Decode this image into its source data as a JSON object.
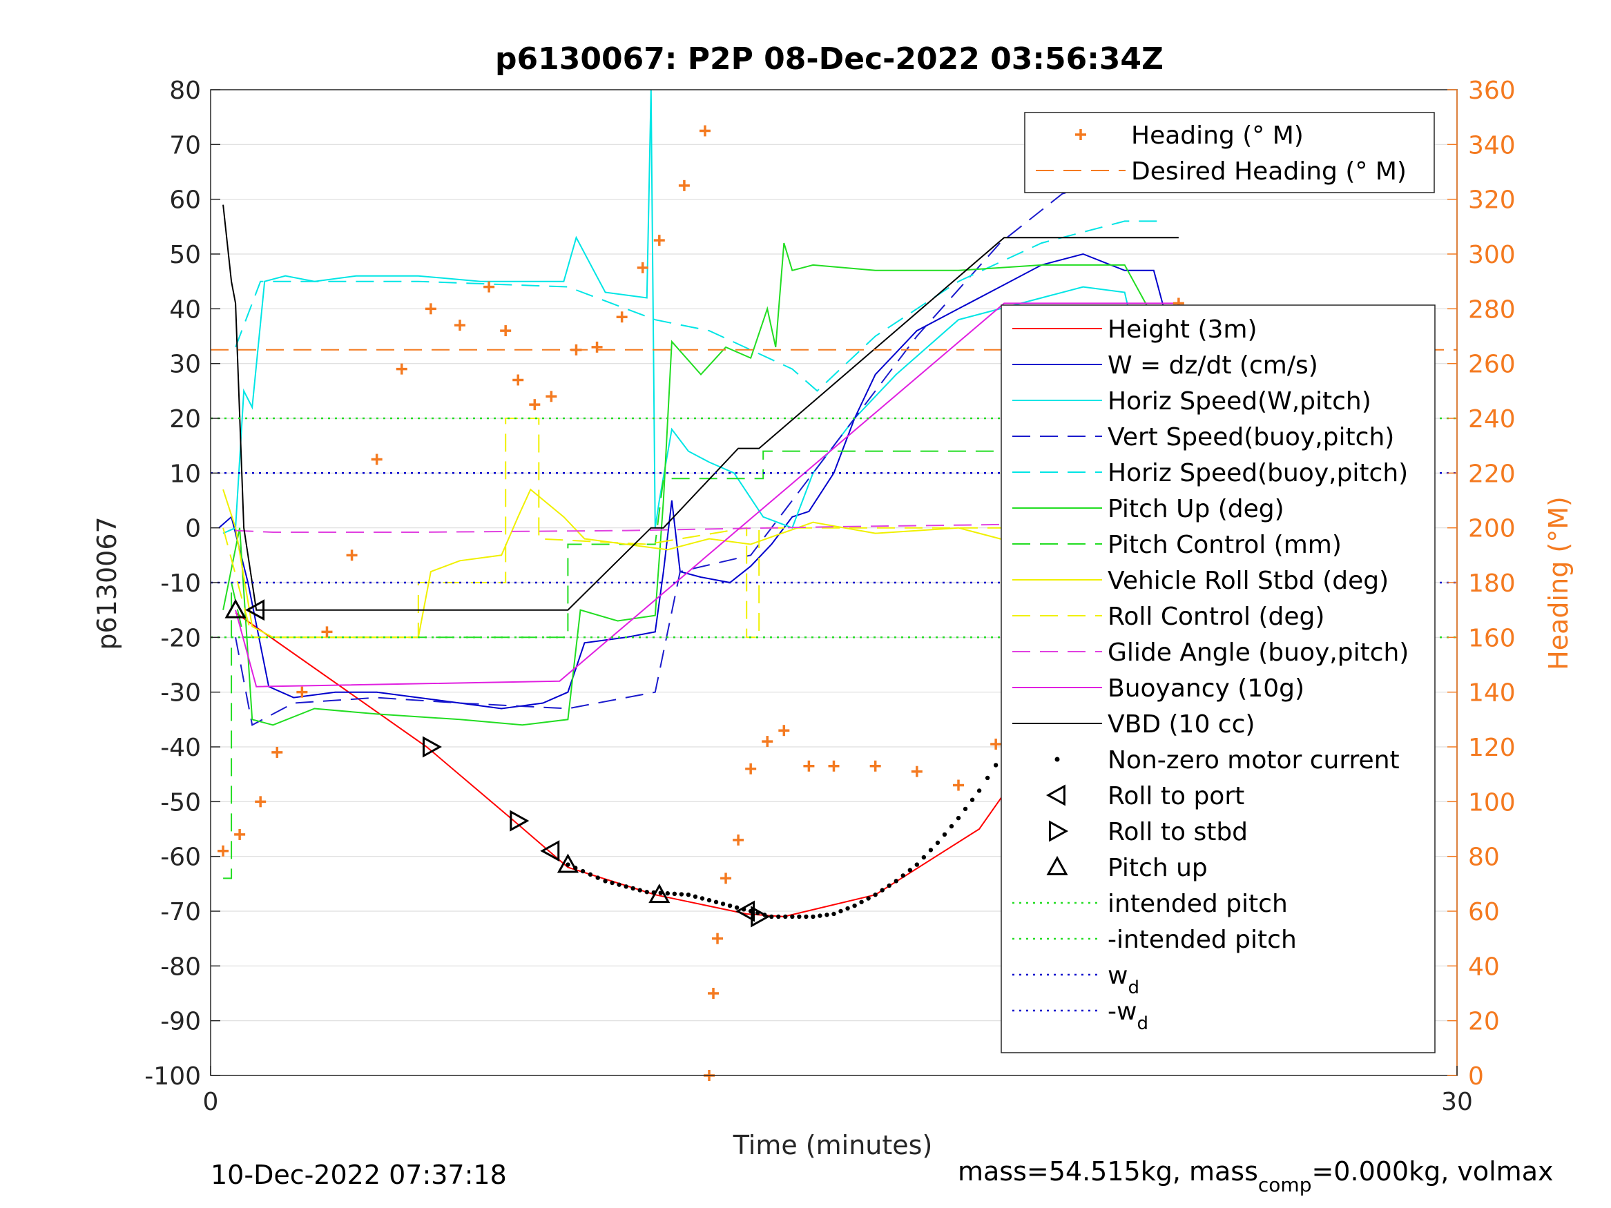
{
  "title": "p6130067: P2P 08-Dec-2022 03:56:34Z",
  "footer_left": "10-Dec-2022 07:37:18",
  "footer_right_parts": [
    "mass=54.515kg, mass",
    "comp",
    "=0.000kg, volmax"
  ],
  "colors": {
    "heading": "#f47a20",
    "height": "#ff0000",
    "w": "#0000cc",
    "horiz": "#00e5e5",
    "vert": "#1a1acc",
    "pitch": "#22dd22",
    "roll": "#f0f000",
    "glide": "#e040e0",
    "buoy": "#e020e0",
    "vbd": "#000000",
    "grid": "#dddddd"
  },
  "chart_data": {
    "type": "line",
    "title": "p6130067: P2P 08-Dec-2022 03:56:34Z",
    "xlabel": "Time (minutes)",
    "ylabel": "p6130067",
    "y2label": "Heading (°M)",
    "xlim": [
      0,
      30
    ],
    "ylim": [
      -100,
      80
    ],
    "y2lim": [
      0,
      360
    ],
    "xticks": [
      "0",
      "30"
    ],
    "yticks": [
      "80",
      "70",
      "60",
      "50",
      "40",
      "30",
      "20",
      "10",
      "0",
      "-10",
      "-20",
      "-30",
      "-40",
      "-50",
      "-60",
      "-70",
      "-80",
      "-90",
      "-100"
    ],
    "y2ticks": [
      "360",
      "340",
      "320",
      "300",
      "280",
      "260",
      "240",
      "220",
      "200",
      "180",
      "160",
      "140",
      "120",
      "100",
      "80",
      "60",
      "40",
      "20",
      "0"
    ],
    "grid": true,
    "legend_top": [
      {
        "label": "Heading (° M)",
        "key": "heading",
        "style": "plus"
      },
      {
        "label": "Desired Heading (° M)",
        "key": "heading",
        "style": "dashed"
      }
    ],
    "legend_main": [
      {
        "label": "Height (3m)",
        "key": "height",
        "style": "solid"
      },
      {
        "label": "W = dz/dt (cm/s)",
        "key": "w",
        "style": "solid"
      },
      {
        "label": "Horiz Speed(W,pitch)",
        "key": "horiz",
        "style": "solid"
      },
      {
        "label": "Vert Speed(buoy,pitch)",
        "key": "vert",
        "style": "dashed"
      },
      {
        "label": "Horiz Speed(buoy,pitch)",
        "key": "horiz",
        "style": "dashed"
      },
      {
        "label": "Pitch Up (deg)",
        "key": "pitch",
        "style": "solid"
      },
      {
        "label": "Pitch Control (mm)",
        "key": "pitch",
        "style": "dashed"
      },
      {
        "label": "Vehicle Roll Stbd (deg)",
        "key": "roll",
        "style": "solid"
      },
      {
        "label": "Roll Control (deg)",
        "key": "roll",
        "style": "dashed"
      },
      {
        "label": "Glide Angle (buoy,pitch)",
        "key": "glide",
        "style": "dashed"
      },
      {
        "label": "Buoyancy (10g)",
        "key": "buoy",
        "style": "solid"
      },
      {
        "label": "VBD (10 cc)",
        "key": "vbd",
        "style": "solid"
      },
      {
        "label": "Non-zero motor current",
        "key": "vbd",
        "style": "dot"
      },
      {
        "label": "Roll to port",
        "key": "vbd",
        "style": "tri-left"
      },
      {
        "label": "Roll to stbd",
        "key": "vbd",
        "style": "tri-right"
      },
      {
        "label": "Pitch up",
        "key": "vbd",
        "style": "tri-up"
      },
      {
        "label": "intended pitch",
        "key": "pitch",
        "style": "dotted"
      },
      {
        "label": "-intended pitch",
        "key": "pitch",
        "style": "dotted"
      },
      {
        "label": "w",
        "sub": "d",
        "key": "w",
        "style": "dotted"
      },
      {
        "label": "-w",
        "sub": "d",
        "key": "w",
        "style": "dotted"
      }
    ],
    "series": [
      {
        "name": "Height (3m)",
        "key": "height",
        "style": "solid",
        "x": [
          0.6,
          5.2,
          7.3,
          8.6,
          10.7,
          12.9,
          13.8,
          16.0,
          18.5,
          21.0,
          23.3
        ],
        "y": [
          -15.5,
          -40,
          -53.5,
          -62,
          -67,
          -70.5,
          -71,
          -67,
          -55,
          -28,
          0
        ]
      },
      {
        "name": "W = dz/dt (cm/s)",
        "key": "w",
        "style": "solid",
        "x": [
          0.2,
          0.5,
          0.9,
          1.4,
          2.0,
          3.0,
          4.0,
          5.0,
          6.0,
          7.0,
          8.0,
          8.6,
          9.0,
          10.0,
          10.7,
          10.9,
          11.1,
          11.3,
          11.8,
          12.5,
          13.0,
          13.5,
          14.0,
          14.4,
          15.0,
          15.5,
          16.0,
          17.0,
          18.0,
          19.0,
          20.0,
          21.0,
          22.0,
          22.7,
          23.3
        ],
        "y": [
          0,
          2,
          -10,
          -29,
          -31,
          -30,
          -30,
          -31,
          -32,
          -33,
          -32,
          -30,
          -21,
          -20,
          -19,
          -8,
          5,
          -8,
          -9,
          -10,
          -7,
          -3,
          2,
          3,
          10,
          20,
          28,
          36,
          40,
          44,
          48,
          50,
          47,
          47,
          30
        ]
      },
      {
        "name": "Horiz Speed(W,pitch)",
        "key": "horiz",
        "style": "solid",
        "x": [
          0.3,
          0.6,
          0.8,
          1.0,
          1.3,
          1.8,
          2.5,
          3.5,
          5.0,
          6.5,
          8.5,
          8.8,
          9.5,
          10.5,
          10.6,
          10.7,
          10.8,
          11.1,
          11.5,
          12.0,
          12.6,
          13.3,
          14.0,
          14.5,
          15.5,
          16.5,
          18.0,
          20.0,
          21.0,
          22.0,
          23.3
        ],
        "y": [
          -1,
          0,
          25,
          22,
          45,
          46,
          45,
          46,
          46,
          45,
          45,
          53,
          43,
          42,
          80,
          0,
          5,
          18,
          14,
          12,
          10,
          2,
          0,
          10,
          20,
          28,
          38,
          42,
          44,
          43,
          0
        ]
      },
      {
        "name": "Vert Speed(buoy,pitch)",
        "key": "vert",
        "style": "dashed",
        "x": [
          0.6,
          1.0,
          2.0,
          4.0,
          6.0,
          8.6,
          10.7,
          11.3,
          13.0,
          15.0,
          17.0,
          19.0,
          20.5,
          21.5,
          23.0
        ],
        "y": [
          -20,
          -36,
          -32,
          -31,
          -32,
          -33,
          -30,
          -8,
          -5,
          15,
          35,
          52,
          61,
          63,
          64
        ]
      },
      {
        "name": "Horiz Speed(buoy,pitch)",
        "key": "horiz",
        "style": "dashed",
        "x": [
          0.6,
          1.2,
          2.0,
          5.0,
          8.6,
          10.7,
          12.0,
          14.0,
          14.6,
          16.0,
          18.0,
          20.0,
          22.0,
          23.0
        ],
        "y": [
          33,
          45,
          45,
          45,
          44,
          38,
          36,
          29,
          25,
          35,
          45,
          52,
          56,
          56
        ]
      },
      {
        "name": "Pitch Up (deg)",
        "key": "pitch",
        "style": "solid",
        "x": [
          0.3,
          0.7,
          1.0,
          1.5,
          2.5,
          4.0,
          6.0,
          7.5,
          8.6,
          8.9,
          9.8,
          10.7,
          10.9,
          11.1,
          11.8,
          12.4,
          13.0,
          13.4,
          13.6,
          13.8,
          14.0,
          14.5,
          16.0,
          18.0,
          20.0,
          22.0,
          23.3
        ],
        "y": [
          -15,
          0,
          -35,
          -36,
          -33,
          -34,
          -35,
          -36,
          -35,
          -15,
          -17,
          -16,
          5,
          34,
          28,
          33,
          31,
          40,
          33,
          52,
          47,
          48,
          47,
          47,
          48,
          48,
          30
        ]
      },
      {
        "name": "Pitch Control (mm)",
        "key": "pitch",
        "style": "dashed",
        "x": [
          0.3,
          0.5,
          0.5,
          0.8,
          8.6,
          8.6,
          10.7,
          10.9,
          12.0,
          13.3,
          13.3,
          23.0
        ],
        "y": [
          -64,
          -64,
          -10,
          -20,
          -20,
          -3,
          -3,
          9,
          9,
          9,
          14,
          14
        ]
      },
      {
        "name": "Vehicle Roll Stbd (deg)",
        "key": "roll",
        "style": "solid",
        "x": [
          0.3,
          0.6,
          1.0,
          1.5,
          2.5,
          3.5,
          5.0,
          5.3,
          6.0,
          7.0,
          7.4,
          7.7,
          8.5,
          9.0,
          10.0,
          11.0,
          12.0,
          13.0,
          14.5,
          16.0,
          18.0,
          19.0,
          20.0,
          21.0,
          22.0,
          23.2
        ],
        "y": [
          7,
          0,
          -18,
          -20,
          -20,
          -20,
          -20,
          -8,
          -6,
          -5,
          2,
          7,
          2,
          -2,
          -3,
          -4,
          -2,
          -3,
          1,
          -1,
          0,
          -2,
          -5,
          -7,
          -5,
          -7
        ]
      },
      {
        "name": "Roll Control (deg)",
        "key": "roll",
        "style": "dashed",
        "x": [
          0.3,
          1.0,
          5.0,
          5.0,
          7.1,
          7.1,
          7.9,
          7.9,
          10.5,
          12.9,
          12.9,
          13.2,
          13.2,
          22.0,
          22.0,
          23.2
        ],
        "y": [
          0,
          -20,
          -20,
          -10,
          -10,
          20,
          20,
          -2,
          -3,
          0,
          -20,
          -20,
          0,
          0,
          20,
          20
        ]
      },
      {
        "name": "Glide Angle (buoy,pitch)",
        "key": "glide",
        "style": "dashed",
        "x": [
          0.6,
          1.5,
          5.0,
          10.0,
          15.0,
          20.0,
          23.0
        ],
        "y": [
          -0.5,
          -0.8,
          -0.8,
          -0.5,
          0.2,
          0.7,
          0.8
        ]
      },
      {
        "name": "Buoyancy (10g)",
        "key": "buoy",
        "style": "solid",
        "x": [
          0.6,
          1.1,
          8.4,
          19.1,
          23.3
        ],
        "y": [
          -15,
          -29,
          -28,
          41,
          41
        ]
      },
      {
        "name": "VBD (10 cc)",
        "key": "vbd",
        "style": "solid",
        "x": [
          0.3,
          0.5,
          0.6,
          0.8,
          1.1,
          8.6,
          10.6,
          10.9,
          12.7,
          13.2,
          19.1,
          23.3
        ],
        "y": [
          59,
          45,
          41,
          0,
          -15,
          -15,
          0,
          0,
          14.5,
          14.5,
          53,
          53
        ]
      },
      {
        "name": "Non-zero motor current",
        "key": "vbd",
        "style": "dots",
        "x": [
          8.6,
          9.5,
          10.5,
          11.5,
          12.5,
          13.0,
          13.5,
          14.0,
          14.5,
          15.0,
          15.5,
          16.0,
          16.5,
          17.0,
          17.5,
          18.0,
          18.5,
          19.1
        ],
        "y": [
          -61.5,
          -64.5,
          -66.5,
          -67,
          -69,
          -70,
          -71,
          -71,
          -71,
          -70.5,
          -69,
          -67,
          -64.5,
          -61.5,
          -57.5,
          -53,
          -48,
          -41
        ]
      },
      {
        "name": "Roll to port",
        "key": "vbd",
        "style": "tri-left",
        "x": [
          1.1,
          8.2,
          12.9
        ],
        "y": [
          -15,
          -59,
          -70
        ]
      },
      {
        "name": "Roll to stbd",
        "key": "vbd",
        "style": "tri-right",
        "x": [
          5.3,
          7.4,
          13.2,
          21.6
        ],
        "y": [
          -40,
          -53.5,
          -71,
          -19
        ]
      },
      {
        "name": "Pitch up",
        "key": "vbd",
        "style": "tri-up",
        "x": [
          0.6,
          8.6,
          10.8
        ],
        "y": [
          -15,
          -61.5,
          -67
        ]
      },
      {
        "name": "intended pitch",
        "key": "pitch",
        "style": "dotted",
        "x": [
          0,
          30
        ],
        "y": [
          20,
          20
        ]
      },
      {
        "name": "-intended pitch",
        "key": "pitch",
        "style": "dotted",
        "x": [
          0,
          30
        ],
        "y": [
          -20,
          -20
        ]
      },
      {
        "name": "w_d",
        "key": "w",
        "style": "dotted",
        "x": [
          0,
          30
        ],
        "y": [
          10,
          10
        ]
      },
      {
        "name": "-w_d",
        "key": "w",
        "style": "dotted",
        "x": [
          0,
          30
        ],
        "y": [
          -10,
          -10
        ]
      },
      {
        "name": "Desired Heading (° M)",
        "key": "heading",
        "style": "dashed",
        "axis": "y2",
        "x": [
          0,
          30
        ],
        "y": [
          265,
          265
        ]
      },
      {
        "name": "Heading (° M)",
        "key": "heading",
        "style": "plus",
        "axis": "y2",
        "x": [
          0.3,
          0.7,
          1.2,
          1.6,
          2.2,
          2.8,
          3.4,
          4.0,
          4.6,
          5.3,
          6.0,
          6.7,
          7.1,
          7.4,
          7.8,
          8.2,
          8.8,
          9.3,
          9.9,
          10.4,
          10.8,
          11.4,
          11.9,
          12.0,
          12.1,
          12.2,
          12.4,
          12.7,
          13.0,
          13.4,
          13.8,
          14.4,
          15.0,
          16.0,
          17.0,
          18.0,
          18.9,
          19.6,
          20.4,
          21.0,
          21.4,
          21.8,
          22.4,
          22.9,
          23.3
        ],
        "y": [
          82,
          88,
          100,
          118,
          140,
          162,
          190,
          225,
          258,
          280,
          274,
          288,
          272,
          254,
          245,
          248,
          265,
          266,
          277,
          295,
          305,
          325,
          345,
          0,
          30,
          50,
          72,
          86,
          112,
          122,
          126,
          113,
          113,
          113,
          111,
          106,
          121,
          128,
          129,
          131,
          145,
          160,
          200,
          240,
          282
        ]
      }
    ]
  }
}
